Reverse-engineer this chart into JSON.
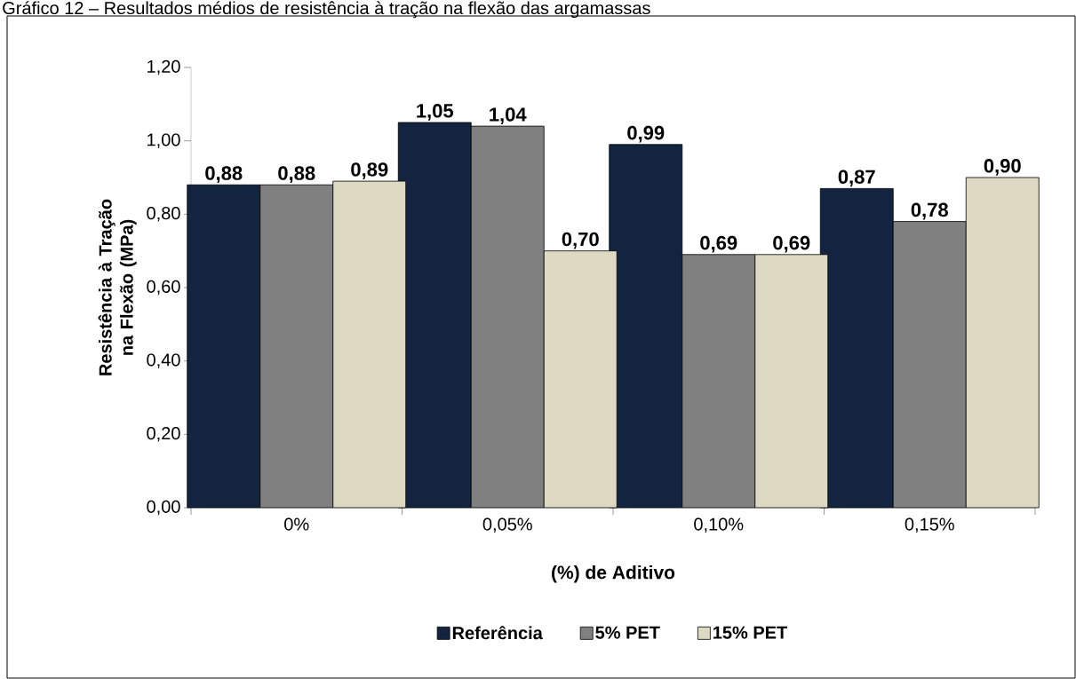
{
  "chart_data": {
    "type": "bar",
    "title": "Gráfico 12 – Resultados médios de resistência à tração na flexão das argamassas",
    "xlabel": "(%) de Aditivo",
    "ylabel": "Resistência à Tração na Flexão (MPa)",
    "categories": [
      "0%",
      "0,05%",
      "0,10%",
      "0,15%"
    ],
    "series": [
      {
        "name": "Referência",
        "color": "#12243f",
        "values": [
          0.88,
          1.05,
          0.99,
          0.87
        ],
        "value_labels": [
          "0,88",
          "1,05",
          "0,99",
          "0,87"
        ]
      },
      {
        "name": "5% PET",
        "color": "#808080",
        "values": [
          0.88,
          1.04,
          0.69,
          0.78
        ],
        "value_labels": [
          "0,88",
          "1,04",
          "0,69",
          "0,78"
        ]
      },
      {
        "name": "15% PET",
        "color": "#ddd9c3",
        "values": [
          0.89,
          0.7,
          0.69,
          0.9
        ],
        "value_labels": [
          "0,89",
          "0,70",
          "0,69",
          "0,90"
        ]
      }
    ],
    "ylim": [
      0,
      1.2
    ],
    "yticks": [
      {
        "value": 0,
        "label": "0,00"
      },
      {
        "value": 0.2,
        "label": "0,20"
      },
      {
        "value": 0.4,
        "label": "0,40"
      },
      {
        "value": 0.6,
        "label": "0,60"
      },
      {
        "value": 0.8,
        "label": "0,80"
      },
      {
        "value": 1.0,
        "label": "1,00"
      },
      {
        "value": 1.2,
        "label": "1,20"
      }
    ],
    "legend": "bottom"
  }
}
